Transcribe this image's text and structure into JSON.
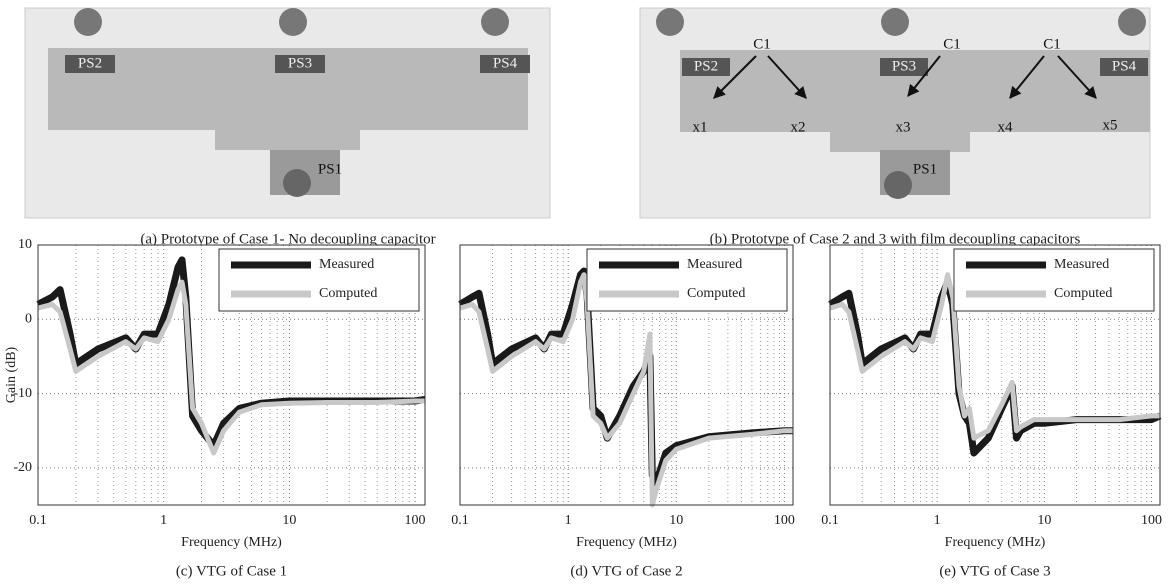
{
  "photos": [
    {
      "caption": "(a) Prototype of Case 1- No decoupling capacitor",
      "labels": [
        "PS2",
        "PS3",
        "PS4",
        "PS1"
      ]
    },
    {
      "caption": "(b) Prototype of Case 2 and 3 with film decoupling capacitors",
      "labels": [
        "PS2",
        "PS3",
        "PS4",
        "C1",
        "C1",
        "C1",
        "x1",
        "x2",
        "x3",
        "x4",
        "x5",
        "PS1"
      ]
    }
  ],
  "chart_data": [
    {
      "type": "line",
      "caption": "(c) VTG of Case 1",
      "xlabel": "Frequency (MHz)",
      "ylabel": "Gain (dB)",
      "xscale": "log",
      "grid": true,
      "legend": "upper right",
      "ytick_labels": true,
      "xlim": [
        0.1,
        120
      ],
      "ylim": [
        -25,
        10
      ],
      "xticks": [
        0.1,
        1,
        10,
        100
      ],
      "yticks": [
        -20,
        -10,
        0,
        10
      ],
      "x": [
        0.1,
        0.13,
        0.15,
        0.18,
        0.2,
        0.3,
        0.5,
        0.6,
        0.7,
        0.9,
        1.1,
        1.3,
        1.4,
        1.5,
        1.7,
        2,
        2.5,
        3,
        4,
        6,
        10,
        20,
        50,
        100,
        120
      ],
      "series": [
        {
          "name": "Measured",
          "color": "#1a1a1a",
          "values": [
            2,
            3,
            4,
            -2,
            -6,
            -4,
            -2.5,
            -4,
            -2,
            -2,
            2,
            7,
            8,
            3,
            -13,
            -15,
            -17,
            -14,
            -12,
            -11.3,
            -11,
            -11,
            -11,
            -11,
            -10.8
          ]
        },
        {
          "name": "Computed",
          "color": "#c8c8c8",
          "values": [
            1.5,
            2,
            1,
            -4,
            -7,
            -5,
            -3,
            -4,
            -2.5,
            -3,
            0,
            4,
            5,
            2,
            -12,
            -14,
            -18,
            -15,
            -12.5,
            -11.5,
            -11.3,
            -11.2,
            -11.2,
            -11,
            -11
          ]
        }
      ]
    },
    {
      "type": "line",
      "caption": "(d) VTG of Case 2",
      "xlabel": "Frequency (MHz)",
      "xscale": "log",
      "grid": true,
      "legend": "upper right",
      "ytick_labels": false,
      "xlim": [
        0.1,
        120
      ],
      "ylim": [
        -25,
        10
      ],
      "xticks": [
        0.1,
        1,
        10,
        100
      ],
      "yticks": [
        -20,
        -10,
        0,
        10
      ],
      "x": [
        0.1,
        0.13,
        0.15,
        0.18,
        0.2,
        0.3,
        0.5,
        0.6,
        0.7,
        0.9,
        1.1,
        1.3,
        1.4,
        1.5,
        1.7,
        2,
        2.3,
        3,
        4,
        5,
        5.7,
        6,
        6.5,
        8,
        10,
        20,
        50,
        100,
        120
      ],
      "series": [
        {
          "name": "Measured",
          "color": "#1a1a1a",
          "values": [
            2,
            3,
            3.5,
            -2,
            -6,
            -4,
            -2.5,
            -4,
            -2,
            -2,
            2,
            6,
            6.5,
            3,
            -12,
            -13,
            -16,
            -13,
            -9,
            -7,
            -5,
            -21,
            -22,
            -18,
            -17,
            -15.8,
            -15.3,
            -15,
            -15
          ]
        },
        {
          "name": "Computed",
          "color": "#c8c8c8",
          "values": [
            1.5,
            2,
            1,
            -4,
            -7,
            -5,
            -3,
            -4,
            -2.5,
            -3,
            0,
            5,
            6,
            2,
            -13,
            -14,
            -16,
            -14,
            -10,
            -7,
            -2,
            -25,
            -23,
            -19,
            -17.5,
            -16,
            -15.5,
            -15,
            -15
          ]
        }
      ]
    },
    {
      "type": "line",
      "caption": "(e) VTG of Case 3",
      "xlabel": "Frequency (MHz)",
      "xscale": "log",
      "grid": true,
      "legend": "upper right",
      "ytick_labels": false,
      "xlim": [
        0.1,
        120
      ],
      "ylim": [
        -25,
        10
      ],
      "xticks": [
        0.1,
        1,
        10,
        100
      ],
      "yticks": [
        -20,
        -10,
        0,
        10
      ],
      "x": [
        0.1,
        0.13,
        0.15,
        0.18,
        0.2,
        0.3,
        0.5,
        0.6,
        0.7,
        0.9,
        1.1,
        1.25,
        1.4,
        1.6,
        1.8,
        2,
        2.2,
        3,
        4,
        5,
        5.5,
        6,
        8,
        10,
        20,
        50,
        100,
        120
      ],
      "series": [
        {
          "name": "Measured",
          "color": "#1a1a1a",
          "values": [
            2,
            3,
            3.5,
            -2,
            -6,
            -4,
            -2.5,
            -4,
            -2,
            -2,
            3,
            5,
            2,
            -10,
            -13,
            -14,
            -18,
            -16,
            -12,
            -9,
            -16,
            -15,
            -14,
            -14,
            -13.5,
            -13.5,
            -13.5,
            -13
          ]
        },
        {
          "name": "Computed",
          "color": "#c8c8c8",
          "values": [
            1.5,
            2,
            1,
            -4,
            -7,
            -5,
            -3,
            -4,
            -2.5,
            -3,
            2,
            6,
            3,
            -9,
            -13,
            -12,
            -16,
            -15,
            -11.5,
            -8.5,
            -15,
            -14.5,
            -13.5,
            -13.5,
            -13.5,
            -13.5,
            -13,
            -13
          ]
        }
      ]
    }
  ]
}
